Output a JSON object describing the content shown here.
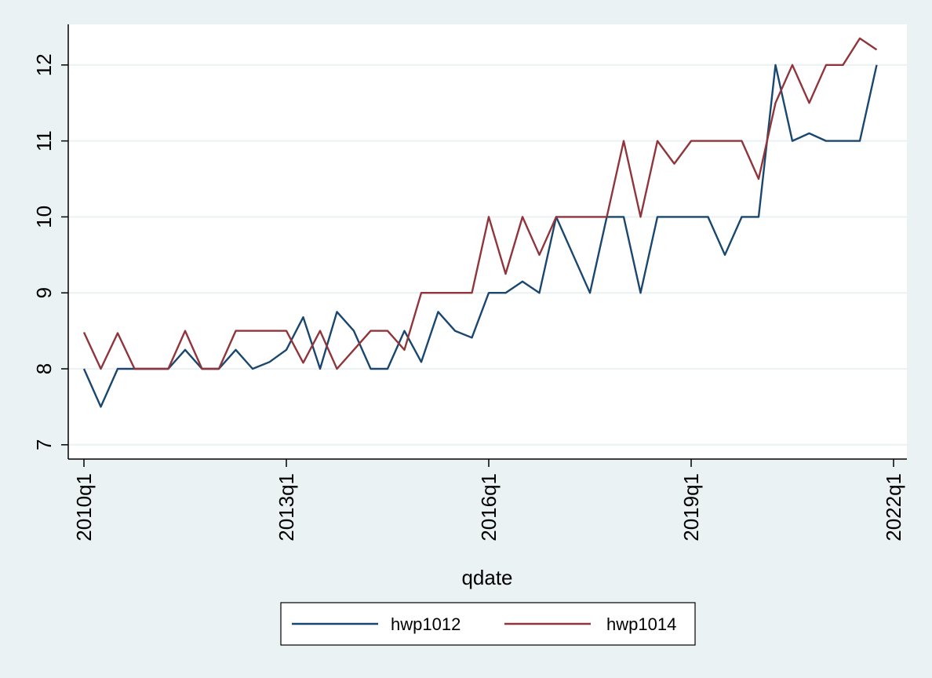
{
  "chart_data": {
    "type": "line",
    "title": "",
    "xlabel": "qdate",
    "ylabel": "",
    "x_start": "2010q1",
    "x_ticks": [
      "2010q1",
      "2013q1",
      "2016q1",
      "2019q1",
      "2022q1"
    ],
    "ylim": [
      7,
      12.5
    ],
    "y_ticks": [
      7,
      8,
      9,
      10,
      11,
      12
    ],
    "grid": "horizontal",
    "legend_position": "bottom",
    "series": [
      {
        "name": "hwp1012",
        "color": "#1a476f",
        "points": [
          [
            "2010q1",
            8
          ],
          [
            "2010q2",
            7.5
          ],
          [
            "2010q3",
            8
          ],
          [
            "2010q4",
            8
          ],
          [
            "2011q1",
            8
          ],
          [
            "2011q2",
            8
          ],
          [
            "2011q3",
            8.25
          ],
          [
            "2011q4",
            8
          ],
          [
            "2012q1",
            8
          ],
          [
            "2012q2",
            8.25
          ],
          [
            "2012q3",
            8
          ],
          [
            "2012q4",
            8.09
          ],
          [
            "2013q1",
            8.25
          ],
          [
            "2013q2",
            8.68
          ],
          [
            "2013q3",
            8
          ],
          [
            "2013q4",
            8.75
          ],
          [
            "2014q1",
            8.5
          ],
          [
            "2014q2",
            8
          ],
          [
            "2014q3",
            8
          ],
          [
            "2014q4",
            8.5
          ],
          [
            "2015q1",
            8.09
          ],
          [
            "2015q2",
            8.75
          ],
          [
            "2015q3",
            8.5
          ],
          [
            "2015q4",
            8.41
          ],
          [
            "2016q1",
            9
          ],
          [
            "2016q2",
            9
          ],
          [
            "2016q3",
            9.15
          ],
          [
            "2016q4",
            9
          ],
          [
            "2017q1",
            10
          ],
          [
            "2017q2",
            9.5
          ],
          [
            "2017q3",
            9
          ],
          [
            "2017q4",
            10
          ],
          [
            "2018q1",
            10
          ],
          [
            "2018q2",
            9
          ],
          [
            "2018q3",
            10
          ],
          [
            "2018q4",
            10
          ],
          [
            "2019q1",
            10
          ],
          [
            "2019q2",
            10
          ],
          [
            "2019q3",
            9.5
          ],
          [
            "2019q4",
            10
          ],
          [
            "2020q1",
            10
          ],
          [
            "2020q2",
            12
          ],
          [
            "2020q3",
            11
          ],
          [
            "2020q4",
            11.1
          ],
          [
            "2021q1",
            11
          ],
          [
            "2021q2",
            11
          ],
          [
            "2021q3",
            11
          ],
          [
            "2021q4",
            12
          ]
        ]
      },
      {
        "name": "hwp1014",
        "color": "#90353b",
        "points": [
          [
            "2010q1",
            8.48
          ],
          [
            "2010q2",
            8
          ],
          [
            "2010q3",
            8.47
          ],
          [
            "2010q4",
            8
          ],
          [
            "2011q1",
            8
          ],
          [
            "2011q2",
            8
          ],
          [
            "2011q3",
            8.5
          ],
          [
            "2011q4",
            8
          ],
          [
            "2012q1",
            8
          ],
          [
            "2012q2",
            8.5
          ],
          [
            "2012q3",
            8.5
          ],
          [
            "2012q4",
            8.5
          ],
          [
            "2013q1",
            8.5
          ],
          [
            "2013q2",
            8.08
          ],
          [
            "2013q3",
            8.5
          ],
          [
            "2013q4",
            8
          ],
          [
            "2014q1",
            8.25
          ],
          [
            "2014q2",
            8.5
          ],
          [
            "2014q3",
            8.5
          ],
          [
            "2014q4",
            8.25
          ],
          [
            "2015q1",
            9
          ],
          [
            "2015q2",
            9
          ],
          [
            "2015q3",
            9
          ],
          [
            "2015q4",
            9
          ],
          [
            "2016q1",
            10
          ],
          [
            "2016q2",
            9.25
          ],
          [
            "2016q3",
            10
          ],
          [
            "2016q4",
            9.5
          ],
          [
            "2017q1",
            10
          ],
          [
            "2017q2",
            10
          ],
          [
            "2017q3",
            10
          ],
          [
            "2017q4",
            10
          ],
          [
            "2018q1",
            11
          ],
          [
            "2018q2",
            10
          ],
          [
            "2018q3",
            11
          ],
          [
            "2018q4",
            10.7
          ],
          [
            "2019q1",
            11
          ],
          [
            "2019q2",
            11
          ],
          [
            "2019q3",
            11
          ],
          [
            "2019q4",
            11
          ],
          [
            "2020q1",
            10.5
          ],
          [
            "2020q2",
            11.5
          ],
          [
            "2020q3",
            12
          ],
          [
            "2020q4",
            11.5
          ],
          [
            "2021q1",
            12
          ],
          [
            "2021q2",
            12
          ],
          [
            "2021q3",
            12.35
          ],
          [
            "2021q4",
            12.2
          ]
        ]
      }
    ]
  }
}
